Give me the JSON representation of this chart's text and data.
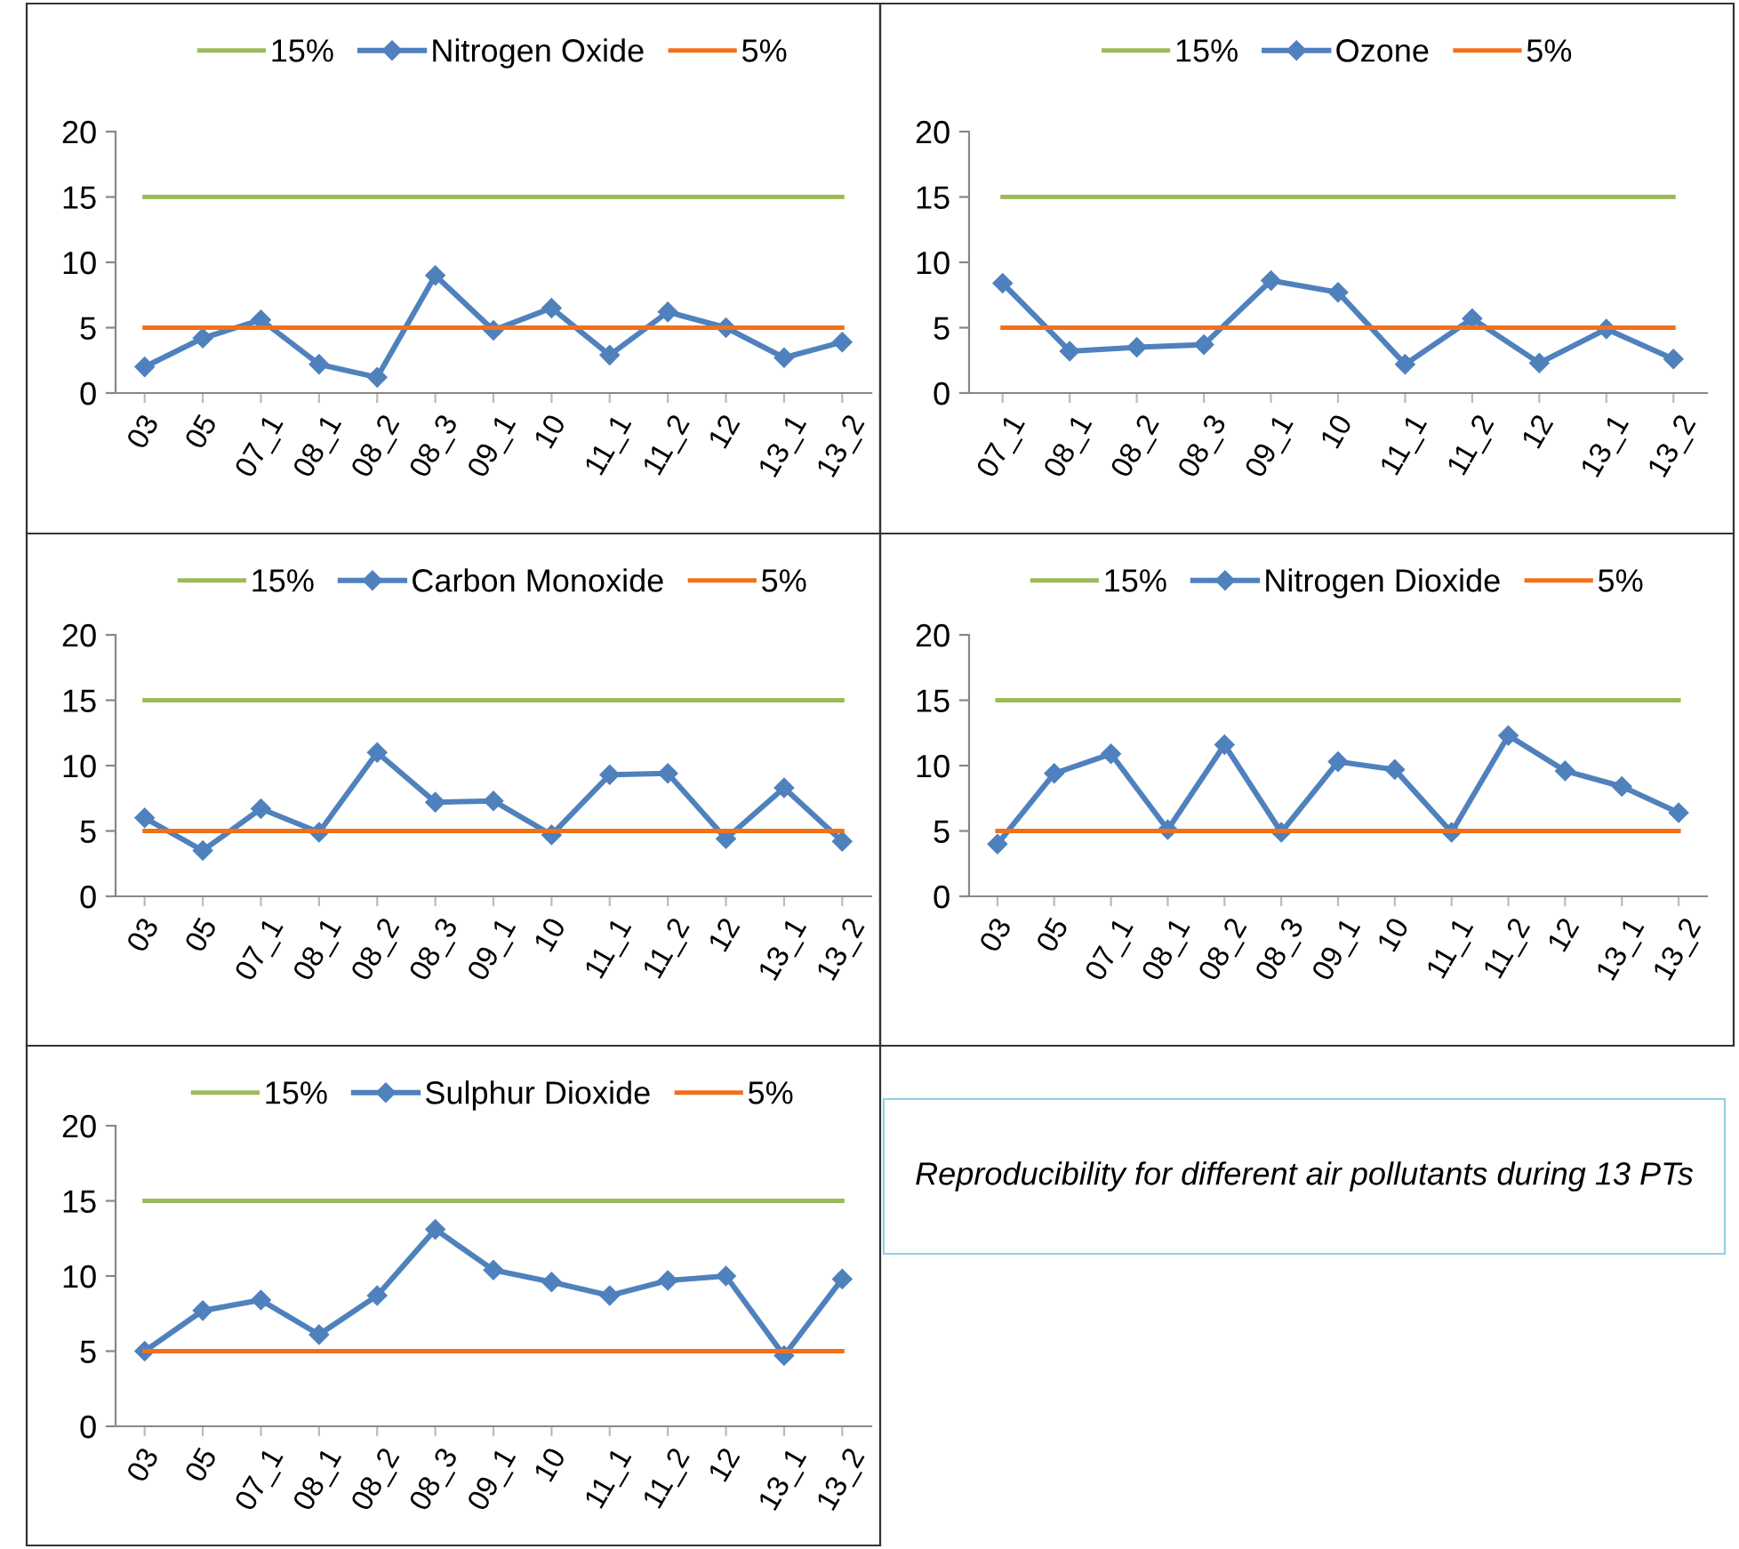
{
  "chart_data": [
    {
      "type": "line",
      "categories": [
        "03",
        "05",
        "07_1",
        "08_1",
        "08_2",
        "08_3",
        "09_1",
        "10",
        "11_1",
        "11_2",
        "12",
        "13_1",
        "13_2"
      ],
      "ylim": [
        0,
        20
      ],
      "yticks": [
        0,
        5,
        10,
        15,
        20
      ],
      "grid": false,
      "legend": "top",
      "series": [
        {
          "name": "15%",
          "color": "#9bbb59",
          "marker": "none",
          "values": [
            15,
            15,
            15,
            15,
            15,
            15,
            15,
            15,
            15,
            15,
            15,
            15,
            15
          ]
        },
        {
          "name": "Nitrogen Oxide",
          "color": "#4f81bd",
          "marker": "diamond",
          "values": [
            2.0,
            4.2,
            5.6,
            2.2,
            1.2,
            9.0,
            4.8,
            6.5,
            2.9,
            6.2,
            5.0,
            2.7,
            3.9
          ]
        },
        {
          "name": "5%",
          "color": "#f0701c",
          "marker": "none",
          "values": [
            5,
            5,
            5,
            5,
            5,
            5,
            5,
            5,
            5,
            5,
            5,
            5,
            5
          ]
        }
      ]
    },
    {
      "type": "line",
      "categories": [
        "07_1",
        "08_1",
        "08_2",
        "08_3",
        "09_1",
        "10",
        "11_1",
        "11_2",
        "12",
        "13_1",
        "13_2"
      ],
      "ylim": [
        0,
        20
      ],
      "yticks": [
        0,
        5,
        10,
        15,
        20
      ],
      "grid": false,
      "legend": "top",
      "series": [
        {
          "name": "15%",
          "color": "#9bbb59",
          "marker": "none",
          "values": [
            15,
            15,
            15,
            15,
            15,
            15,
            15,
            15,
            15,
            15,
            15
          ]
        },
        {
          "name": "Ozone",
          "color": "#4f81bd",
          "marker": "diamond",
          "values": [
            8.4,
            3.2,
            3.5,
            3.7,
            8.6,
            7.7,
            2.2,
            5.7,
            2.3,
            4.9,
            2.6
          ]
        },
        {
          "name": "5%",
          "color": "#f0701c",
          "marker": "none",
          "values": [
            5,
            5,
            5,
            5,
            5,
            5,
            5,
            5,
            5,
            5,
            5
          ]
        }
      ]
    },
    {
      "type": "line",
      "categories": [
        "03",
        "05",
        "07_1",
        "08_1",
        "08_2",
        "08_3",
        "09_1",
        "10",
        "11_1",
        "11_2",
        "12",
        "13_1",
        "13_2"
      ],
      "ylim": [
        0,
        20
      ],
      "yticks": [
        0,
        5,
        10,
        15,
        20
      ],
      "grid": false,
      "legend": "top",
      "series": [
        {
          "name": "15%",
          "color": "#9bbb59",
          "marker": "none",
          "values": [
            15,
            15,
            15,
            15,
            15,
            15,
            15,
            15,
            15,
            15,
            15,
            15,
            15
          ]
        },
        {
          "name": "Carbon Monoxide",
          "color": "#4f81bd",
          "marker": "diamond",
          "values": [
            6.0,
            3.5,
            6.7,
            4.9,
            11.0,
            7.2,
            7.3,
            4.7,
            9.3,
            9.4,
            4.4,
            8.3,
            4.2
          ]
        },
        {
          "name": "5%",
          "color": "#f0701c",
          "marker": "none",
          "values": [
            5,
            5,
            5,
            5,
            5,
            5,
            5,
            5,
            5,
            5,
            5,
            5,
            5
          ]
        }
      ]
    },
    {
      "type": "line",
      "categories": [
        "03",
        "05",
        "07_1",
        "08_1",
        "08_2",
        "08_3",
        "09_1",
        "10",
        "11_1",
        "11_2",
        "12",
        "13_1",
        "13_2"
      ],
      "ylim": [
        0,
        20
      ],
      "yticks": [
        0,
        5,
        10,
        15,
        20
      ],
      "grid": false,
      "legend": "top",
      "series": [
        {
          "name": "15%",
          "color": "#9bbb59",
          "marker": "none",
          "values": [
            15,
            15,
            15,
            15,
            15,
            15,
            15,
            15,
            15,
            15,
            15,
            15,
            15
          ]
        },
        {
          "name": "Nitrogen Dioxide",
          "color": "#4f81bd",
          "marker": "diamond",
          "values": [
            4.0,
            9.4,
            10.9,
            5.1,
            11.6,
            4.9,
            10.3,
            9.7,
            4.9,
            12.3,
            9.6,
            8.4,
            6.4
          ]
        },
        {
          "name": "5%",
          "color": "#f0701c",
          "marker": "none",
          "values": [
            5,
            5,
            5,
            5,
            5,
            5,
            5,
            5,
            5,
            5,
            5,
            5,
            5
          ]
        }
      ]
    },
    {
      "type": "line",
      "categories": [
        "03",
        "05",
        "07_1",
        "08_1",
        "08_2",
        "08_3",
        "09_1",
        "10",
        "11_1",
        "11_2",
        "12",
        "13_1",
        "13_2"
      ],
      "ylim": [
        0,
        20
      ],
      "yticks": [
        0,
        5,
        10,
        15,
        20
      ],
      "grid": false,
      "legend": "top",
      "series": [
        {
          "name": "15%",
          "color": "#9bbb59",
          "marker": "none",
          "values": [
            15,
            15,
            15,
            15,
            15,
            15,
            15,
            15,
            15,
            15,
            15,
            15,
            15
          ]
        },
        {
          "name": "Sulphur Dioxide",
          "color": "#4f81bd",
          "marker": "diamond",
          "values": [
            5.0,
            7.7,
            8.4,
            6.1,
            8.7,
            13.1,
            10.4,
            9.6,
            8.7,
            9.7,
            10.0,
            4.7,
            9.8
          ]
        },
        {
          "name": "5%",
          "color": "#f0701c",
          "marker": "none",
          "values": [
            5,
            5,
            5,
            5,
            5,
            5,
            5,
            5,
            5,
            5,
            5,
            5,
            5
          ]
        }
      ]
    },
    {
      "type": "other",
      "title": "Reproducibility for different air pollutants during 13 PTs"
    }
  ]
}
